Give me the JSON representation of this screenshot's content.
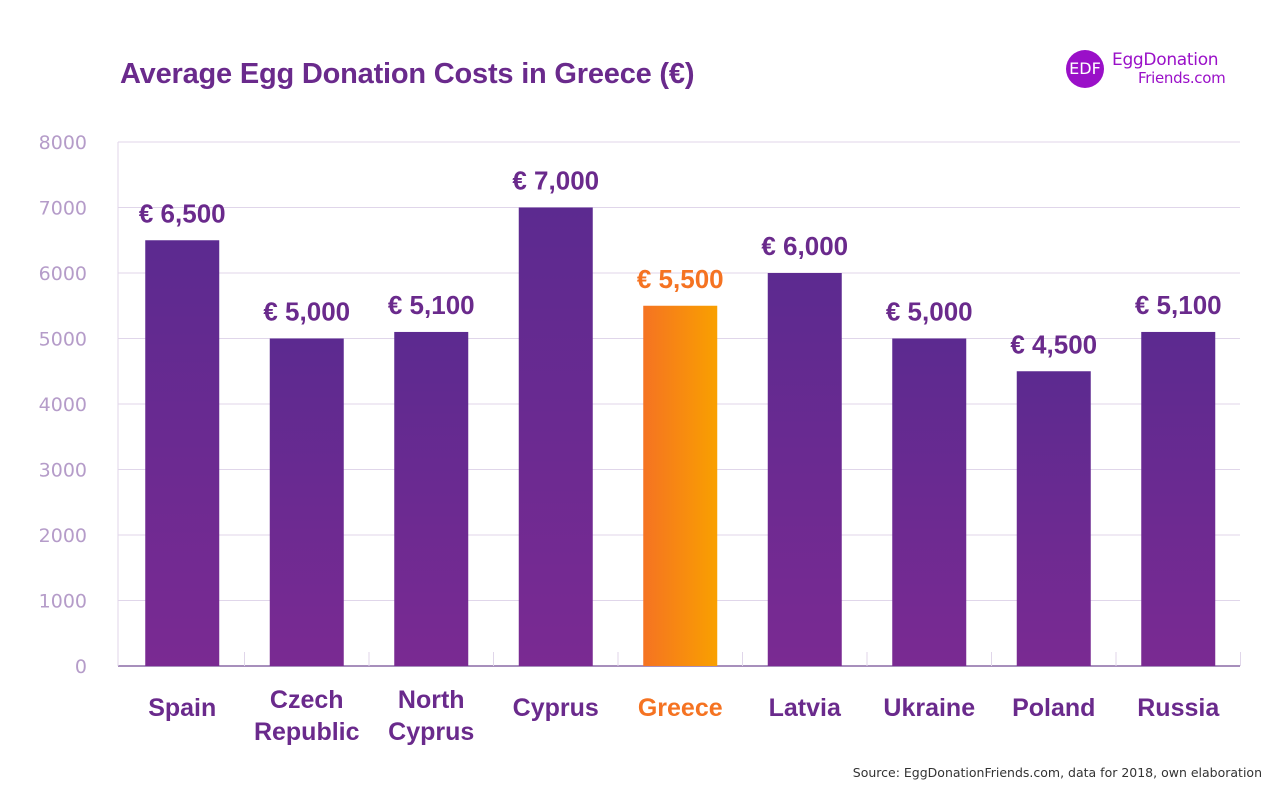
{
  "title": "Average Egg Donation Costs in Greece (€)",
  "logo": {
    "mark": "EDF",
    "line1": "EggDonation",
    "line2": "Friends.com"
  },
  "source": "Source: EggDonationFriends.com, data for 2018, own elaboration",
  "colors": {
    "title": "#6a2a8c",
    "bar_top": "#5c2a90",
    "bar_bottom": "#7a2a92",
    "highlight_left": "#f57322",
    "highlight_right": "#f9a000",
    "highlight_text": "#f57322",
    "tick": "#b59cc9",
    "grid": "#e0d6ea",
    "axis": "#8a6aa5"
  },
  "chart_data": {
    "type": "bar",
    "categories": [
      "Spain",
      "Czech Republic",
      "North Cyprus",
      "Cyprus",
      "Greece",
      "Latvia",
      "Ukraine",
      "Poland",
      "Russia"
    ],
    "category_lines": [
      [
        "Spain"
      ],
      [
        "Czech",
        "Republic"
      ],
      [
        "North",
        "Cyprus"
      ],
      [
        "Cyprus"
      ],
      [
        "Greece"
      ],
      [
        "Latvia"
      ],
      [
        "Ukraine"
      ],
      [
        "Poland"
      ],
      [
        "Russia"
      ]
    ],
    "values": [
      6500,
      5000,
      5100,
      7000,
      5500,
      6000,
      5000,
      4500,
      5100
    ],
    "value_labels": [
      "€ 6,500",
      "€ 5,000",
      "€ 5,100",
      "€ 7,000",
      "€ 5,500",
      "€ 6,000",
      "€ 5,000",
      "€ 4,500",
      "€ 5,100"
    ],
    "highlight": "Greece",
    "ylim": [
      0,
      8000
    ],
    "yticks": [
      0,
      1000,
      2000,
      3000,
      4000,
      5000,
      6000,
      7000,
      8000
    ],
    "grid": true,
    "legend": "none",
    "xlabel": "",
    "ylabel": ""
  }
}
